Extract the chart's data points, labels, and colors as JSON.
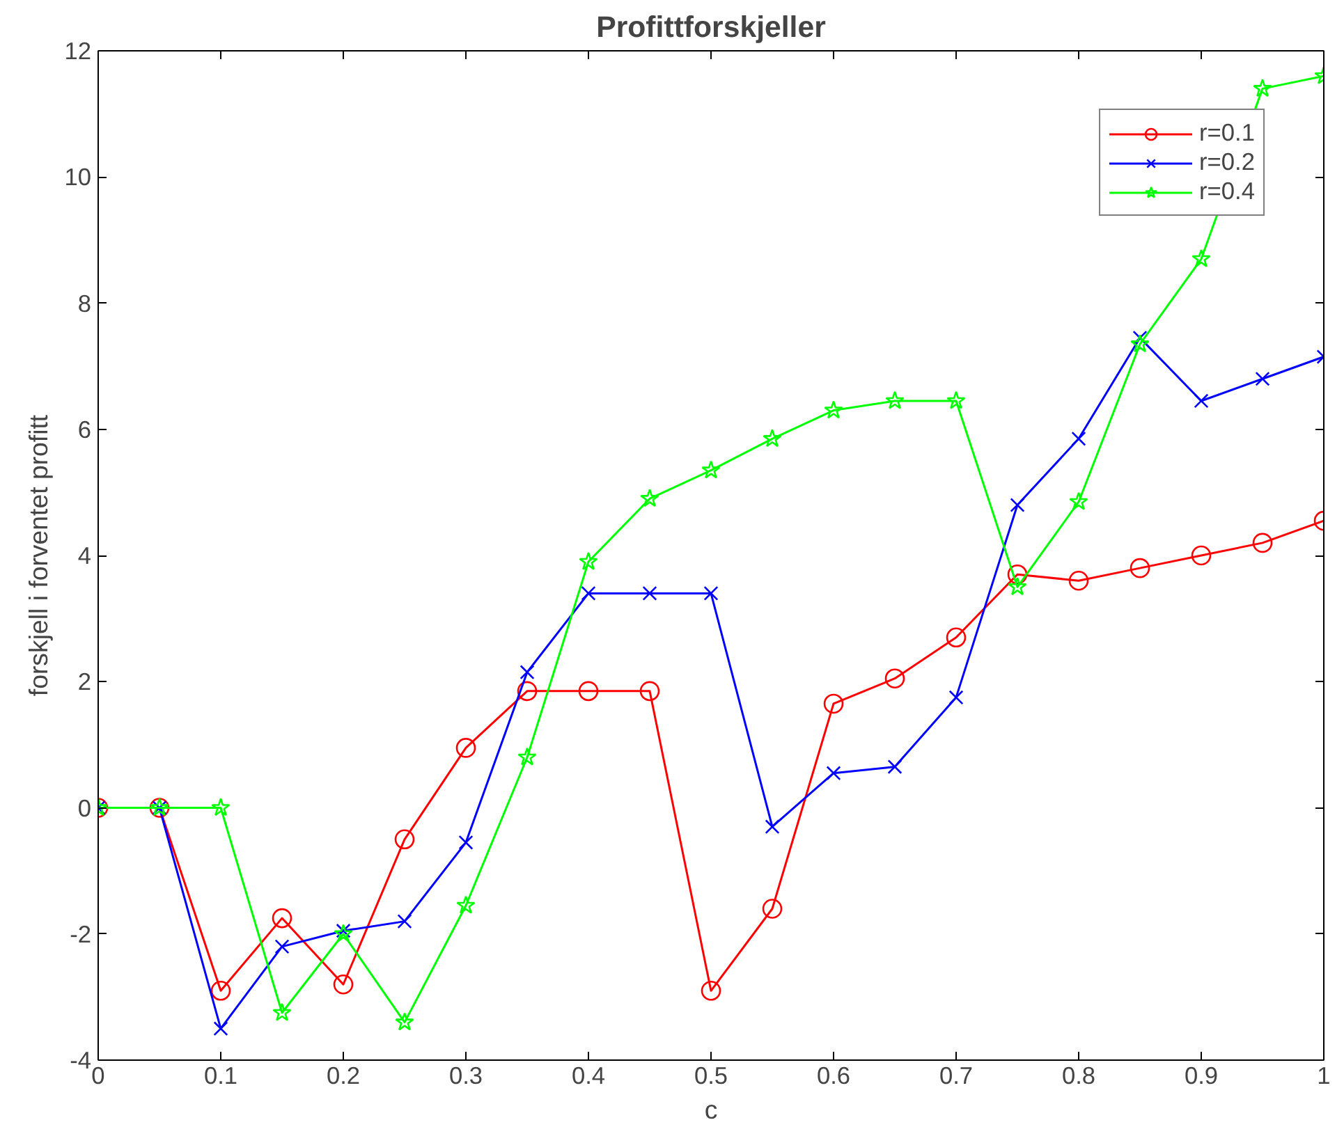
{
  "chart_data": {
    "type": "line",
    "title": "Profittforskjeller",
    "xlabel": "c",
    "ylabel": "forskjell i forventet profitt",
    "x": [
      0,
      0.05,
      0.1,
      0.15,
      0.2,
      0.25,
      0.3,
      0.35,
      0.4,
      0.45,
      0.5,
      0.55,
      0.6,
      0.65,
      0.7,
      0.75,
      0.8,
      0.85,
      0.9,
      0.95,
      1
    ],
    "series": [
      {
        "name": "r=0.1",
        "color": "#ff0000",
        "marker": "circle",
        "values": [
          0,
          0,
          -2.9,
          -1.75,
          -2.8,
          -0.5,
          0.95,
          1.85,
          1.85,
          1.85,
          -2.9,
          -1.6,
          1.65,
          2.05,
          2.7,
          3.7,
          3.6,
          3.8,
          4.0,
          4.2,
          4.55
        ]
      },
      {
        "name": "r=0.2",
        "color": "#0000ff",
        "marker": "cross",
        "values": [
          0,
          0,
          -3.5,
          -2.2,
          -1.95,
          -1.8,
          -0.55,
          2.15,
          3.4,
          3.4,
          3.4,
          -0.3,
          0.55,
          0.65,
          1.75,
          4.8,
          5.85,
          7.45,
          6.45,
          6.8,
          7.15
        ]
      },
      {
        "name": "r=0.4",
        "color": "#00ff00",
        "marker": "star",
        "values": [
          0,
          0,
          0,
          -3.25,
          -2.0,
          -3.4,
          -1.55,
          0.8,
          3.9,
          4.9,
          5.35,
          5.85,
          6.3,
          6.45,
          6.45,
          3.5,
          4.85,
          7.35,
          8.7,
          11.4,
          11.6
        ]
      }
    ],
    "xlim": [
      0,
      1
    ],
    "ylim": [
      -4,
      12
    ],
    "xticks": [
      0,
      0.1,
      0.2,
      0.3,
      0.4,
      0.5,
      0.6,
      0.7,
      0.8,
      0.9,
      1
    ],
    "yticks": [
      -4,
      -2,
      0,
      2,
      4,
      6,
      8,
      10,
      12
    ],
    "grid": false,
    "legend": "top right",
    "line_style": "solid"
  }
}
